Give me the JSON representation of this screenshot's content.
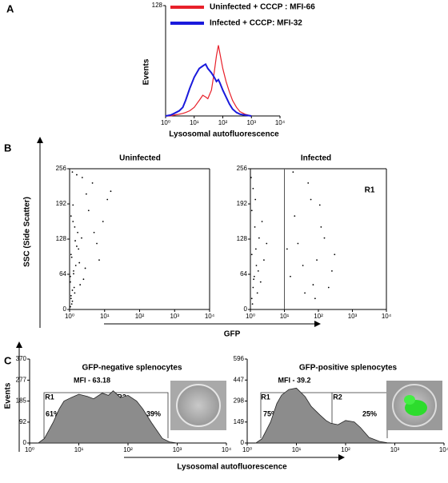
{
  "chart_data": [
    {
      "type": "line",
      "panel": "A",
      "xlabel": "Lysosomal autofluorescence",
      "ylabel": "Events",
      "xscale": "log",
      "xlim": [
        1,
        10000
      ],
      "xticks": [
        {
          "value": 1,
          "label": "10⁰"
        },
        {
          "value": 10,
          "label": "10¹"
        },
        {
          "value": 100,
          "label": "10²"
        },
        {
          "value": 1000,
          "label": "10³"
        },
        {
          "value": 10000,
          "label": "10⁴"
        }
      ],
      "ylim": [
        0,
        128
      ],
      "yticks": [
        128
      ],
      "x": [
        1,
        1.5,
        2,
        3,
        4,
        5,
        7,
        10,
        15,
        20,
        25,
        30,
        40,
        50,
        60,
        70,
        80,
        100,
        130,
        170,
        220,
        300,
        400,
        600,
        1000
      ],
      "series": [
        {
          "name": "Uninfected + CCCP : MFI-66",
          "color": "#e8202a",
          "values": [
            0,
            0,
            1,
            2,
            3,
            4,
            6,
            10,
            18,
            24,
            22,
            20,
            30,
            50,
            70,
            82,
            72,
            55,
            40,
            28,
            18,
            10,
            5,
            2,
            0
          ]
        },
        {
          "name": "Infected + CCCP: MFI-32",
          "color": "#1a1adc",
          "values": [
            0,
            1,
            3,
            6,
            10,
            18,
            32,
            45,
            55,
            58,
            60,
            55,
            50,
            45,
            40,
            42,
            38,
            30,
            22,
            14,
            8,
            4,
            2,
            1,
            0
          ]
        }
      ]
    },
    {
      "type": "scatter",
      "panel": "B",
      "title": "Uninfected",
      "xlabel": "GFP",
      "ylabel": "SSC (Side Scatter)",
      "xscale": "log",
      "color": "#000000",
      "xlim": [
        1,
        10000
      ],
      "xticks": [
        {
          "value": 1,
          "label": "10⁰"
        },
        {
          "value": 10,
          "label": "10¹"
        },
        {
          "value": 100,
          "label": "10²"
        },
        {
          "value": 1000,
          "label": "10³"
        },
        {
          "value": 10000,
          "label": "10⁴"
        }
      ],
      "ylim": [
        0,
        256
      ],
      "yticks": [
        0,
        64,
        128,
        192,
        256
      ],
      "x": [
        1.1,
        1.2,
        1.05,
        1.3,
        1.5,
        1.15,
        1.8,
        2.2,
        1.4,
        1.1,
        1.25,
        3,
        4.5,
        1.6,
        1.2,
        1.05,
        2.8,
        6,
        9,
        1.35,
        1.1,
        1.7,
        2.5,
        12,
        1.2,
        1.4,
        1.9,
        3.5,
        5,
        1.15,
        1.3,
        2,
        1.1,
        1.6,
        7,
        15,
        1.25,
        1.05,
        2.3,
        1.45
      ],
      "values": [
        20,
        35,
        50,
        65,
        80,
        95,
        110,
        130,
        150,
        170,
        190,
        210,
        230,
        245,
        15,
        60,
        75,
        120,
        160,
        40,
        100,
        140,
        55,
        200,
        250,
        30,
        85,
        180,
        140,
        10,
        70,
        45,
        25,
        115,
        90,
        215,
        160,
        5,
        240,
        125
      ]
    },
    {
      "type": "scatter",
      "title": "Infected",
      "annotation": "R1",
      "gate": 10,
      "xscale": "log",
      "color": "#000000",
      "xlim": [
        1,
        10000
      ],
      "xticks": [
        {
          "value": 1,
          "label": "10⁰"
        },
        {
          "value": 10,
          "label": "10¹"
        },
        {
          "value": 100,
          "label": "10²"
        },
        {
          "value": 1000,
          "label": "10³"
        },
        {
          "value": 10000,
          "label": "10⁴"
        }
      ],
      "ylim": [
        0,
        256
      ],
      "yticks": [
        0,
        64,
        128,
        192,
        256
      ],
      "x": [
        1.1,
        1.2,
        1.3,
        1.5,
        1.1,
        1.8,
        2.2,
        1.4,
        1.05,
        1.6,
        1.25,
        3,
        2.5,
        1.15,
        1.7,
        1.35,
        1.1,
        2,
        1.2,
        1.45,
        15,
        25,
        40,
        60,
        90,
        120,
        200,
        300,
        20,
        35,
        50,
        80,
        150,
        250,
        12,
        18,
        70,
        110
      ],
      "values": [
        20,
        40,
        60,
        80,
        100,
        130,
        160,
        200,
        240,
        30,
        55,
        120,
        90,
        10,
        70,
        150,
        180,
        50,
        220,
        110,
        60,
        120,
        30,
        200,
        90,
        150,
        40,
        100,
        170,
        80,
        230,
        20,
        130,
        70,
        110,
        250,
        45,
        190
      ]
    },
    {
      "type": "area",
      "panel": "C",
      "title": "GFP-negative splenocytes",
      "xlabel": "Lysosomal autofluorescence",
      "ylabel": "Events",
      "xscale": "log",
      "color": "#8c8c8c",
      "mfi_label": "MFI - 63.18",
      "region_labels": [
        "R1",
        "R2"
      ],
      "percent_labels": [
        "61%",
        "39%"
      ],
      "xlim": [
        1,
        10000
      ],
      "xticks": [
        {
          "value": 1,
          "label": "10⁰"
        },
        {
          "value": 10,
          "label": "10¹"
        },
        {
          "value": 100,
          "label": "10²"
        },
        {
          "value": 1000,
          "label": "10³"
        },
        {
          "value": 10000,
          "label": "10⁴"
        }
      ],
      "ylim": [
        0,
        370
      ],
      "yticks": [
        0,
        92,
        185,
        277,
        370
      ],
      "x": [
        1.5,
        2,
        3,
        4,
        5,
        7,
        10,
        15,
        20,
        30,
        40,
        50,
        70,
        100,
        150,
        200,
        300,
        500,
        700,
        1000
      ],
      "values": [
        0,
        20,
        90,
        150,
        185,
        200,
        215,
        205,
        195,
        220,
        210,
        230,
        200,
        210,
        185,
        150,
        90,
        20,
        5,
        0
      ]
    },
    {
      "type": "area",
      "title": "GFP-positive splenocytes",
      "xscale": "log",
      "color": "#8c8c8c",
      "mfi_label": "MFI - 39.2",
      "region_labels": [
        "R1",
        "R2"
      ],
      "percent_labels": [
        "75%",
        "25%"
      ],
      "xlim": [
        1,
        10000
      ],
      "xticks": [
        {
          "value": 1,
          "label": "10⁰"
        },
        {
          "value": 10,
          "label": "10¹"
        },
        {
          "value": 100,
          "label": "10²"
        },
        {
          "value": 1000,
          "label": "10³"
        },
        {
          "value": 10000,
          "label": "10⁴"
        }
      ],
      "ylim": [
        0,
        596
      ],
      "yticks": [
        0,
        149,
        298,
        447,
        596
      ],
      "x": [
        1.5,
        2,
        3,
        4,
        5,
        7,
        10,
        15,
        20,
        30,
        40,
        50,
        70,
        100,
        150,
        200,
        300,
        500,
        700,
        1000
      ],
      "values": [
        0,
        30,
        150,
        280,
        340,
        380,
        390,
        330,
        260,
        200,
        160,
        140,
        130,
        160,
        150,
        110,
        40,
        10,
        2,
        0
      ]
    }
  ]
}
